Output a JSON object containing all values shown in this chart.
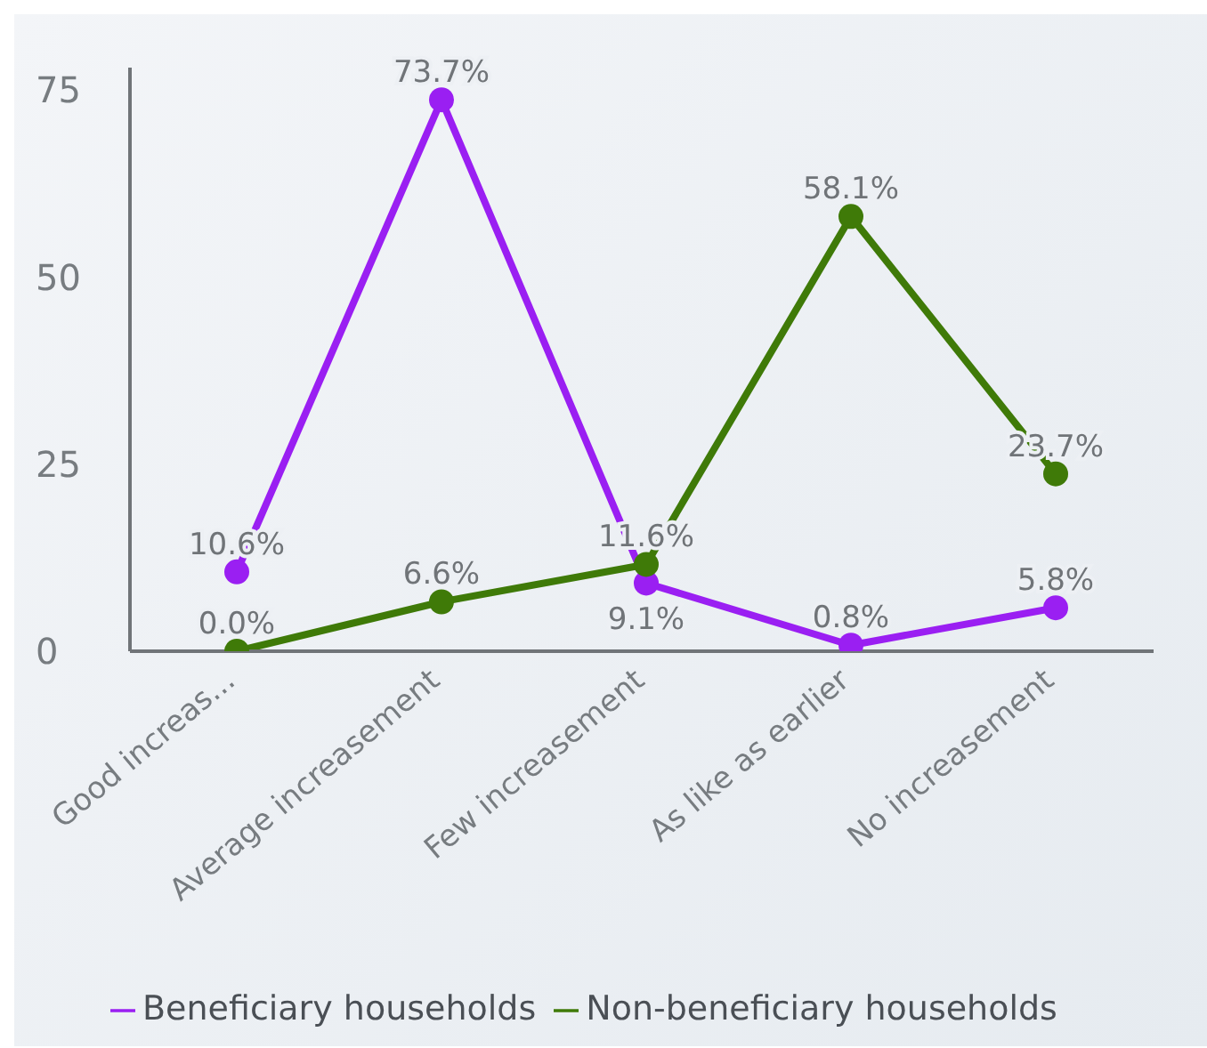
{
  "chart_data": {
    "type": "line",
    "categories": [
      "Good increas...",
      "Average increasement",
      "Few increasement",
      "As like as earlier",
      "No increasement"
    ],
    "series": [
      {
        "name": "Beneficiary households",
        "color": "#9a1ff2",
        "values": [
          10.6,
          73.7,
          9.1,
          0.8,
          5.8
        ],
        "value_labels": [
          "10.6%",
          "73.7%",
          "9.1%",
          "0.8%",
          "5.8%"
        ]
      },
      {
        "name": "Non-beneficiary households",
        "color": "#3f7a08",
        "values": [
          0.0,
          6.6,
          11.6,
          58.1,
          23.7
        ],
        "value_labels": [
          "0.0%",
          "6.6%",
          "11.6%",
          "58.1%",
          "23.7%"
        ]
      }
    ],
    "ylim": [
      0,
      78
    ],
    "yticks": [
      0,
      25,
      50,
      75
    ],
    "grid": false,
    "legend": "bottom",
    "marker": "circle",
    "line_style": "solid"
  }
}
